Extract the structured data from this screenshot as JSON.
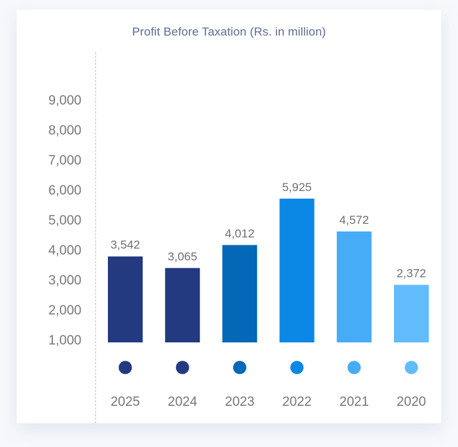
{
  "chart_data": {
    "type": "bar",
    "title": "Profit Before Taxation (Rs. in million)",
    "xlabel": "",
    "ylabel": "",
    "categories": [
      "2025",
      "2024",
      "2023",
      "2022",
      "2021",
      "2020"
    ],
    "values": [
      3542,
      3065,
      4012,
      5925,
      4572,
      2372
    ],
    "value_labels": [
      "3,542",
      "3,065",
      "4,012",
      "5,925",
      "4,572",
      "2,372"
    ],
    "colors": [
      "#233a80",
      "#233a80",
      "#0467b8",
      "#0b88e6",
      "#46acf7",
      "#62bbfb"
    ],
    "yticks": [
      1000,
      2000,
      3000,
      4000,
      5000,
      6000,
      7000,
      8000,
      9000
    ],
    "ytick_labels": [
      "1,000",
      "2,000",
      "3,000",
      "4,000",
      "5,000",
      "6,000",
      "7,000",
      "8,000",
      "9,000"
    ],
    "ylim": [
      0,
      9000
    ],
    "grid": false,
    "legend": "markers-below-bars"
  }
}
